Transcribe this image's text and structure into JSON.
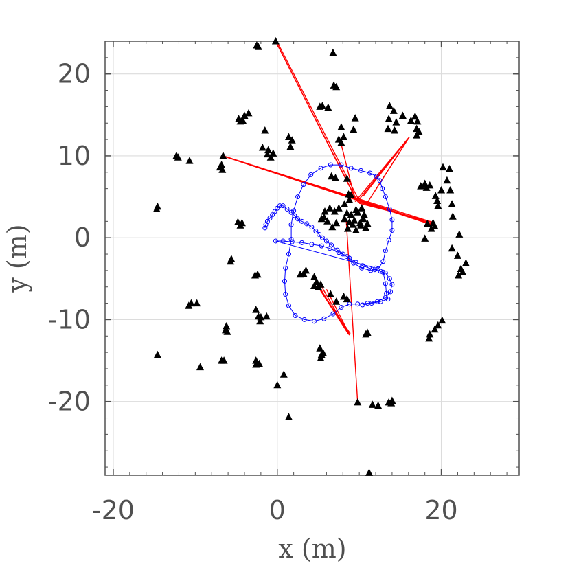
{
  "chart_data": {
    "type": "scatter",
    "xlabel": "x (m)",
    "ylabel": "y (m)",
    "xlim": [
      -21,
      29.5
    ],
    "ylim": [
      -29,
      24
    ],
    "grid": true,
    "x_ticks": [
      -20,
      0,
      20
    ],
    "x_tick_labels": [
      "-20",
      "0",
      "20"
    ],
    "y_ticks": [
      20,
      10,
      0,
      -10,
      -20
    ],
    "y_tick_labels": [
      "20",
      "10",
      "0",
      "-10",
      "-20"
    ],
    "colors": {
      "landmarks": "#000000",
      "trajectory": "#0000ff",
      "observations": "#ff0000",
      "grid": "#dcdcdc",
      "axes": "#505050"
    },
    "series": [
      {
        "marker": "triangle",
        "points": [
          [
            -2.5,
            23.5
          ],
          [
            -2.3,
            23.3
          ],
          [
            -0.2,
            24
          ],
          [
            6.8,
            22.6
          ],
          [
            6.9,
            18.6
          ],
          [
            7.2,
            18.4
          ],
          [
            5.2,
            16
          ],
          [
            6.2,
            15.9
          ],
          [
            5.5,
            16.1
          ],
          [
            9.5,
            14.6
          ],
          [
            9.3,
            13.2
          ],
          [
            7.5,
            12
          ],
          [
            7.8,
            11.6
          ],
          [
            8.1,
            12.3
          ],
          [
            7.8,
            13.5
          ],
          [
            -4.7,
            14.5
          ],
          [
            -4.2,
            14.3
          ],
          [
            -4,
            14.9
          ],
          [
            -3.5,
            15.2
          ],
          [
            -4.5,
            14.2
          ],
          [
            -1.5,
            13.1
          ],
          [
            1.4,
            12.3
          ],
          [
            1.8,
            11.9
          ],
          [
            1.6,
            11.1
          ],
          [
            -1.8,
            11
          ],
          [
            -1.1,
            10.7
          ],
          [
            -1.2,
            10.2
          ],
          [
            -0.5,
            10.3
          ],
          [
            -0.8,
            9.8
          ],
          [
            -12.3,
            10
          ],
          [
            -12.1,
            9.8
          ],
          [
            -10.7,
            9.4
          ],
          [
            -6.6,
            10
          ],
          [
            -6.8,
            8.9
          ],
          [
            -7,
            8.6
          ],
          [
            -6.7,
            8.3
          ],
          [
            -14.6,
            3.8
          ],
          [
            -14.7,
            3.5
          ],
          [
            -4.8,
            1.9
          ],
          [
            -4.5,
            1.5
          ],
          [
            -4.3,
            1.8
          ],
          [
            13.7,
            16.1
          ],
          [
            14.2,
            15.5
          ],
          [
            15.3,
            14.9
          ],
          [
            16.3,
            14.3
          ],
          [
            16.8,
            14.8
          ],
          [
            17.1,
            14.2
          ],
          [
            14.5,
            14.1
          ],
          [
            13.6,
            14.5
          ],
          [
            13.5,
            13.3
          ],
          [
            14.3,
            13.1
          ],
          [
            17,
            12.5
          ],
          [
            17.3,
            12.9
          ],
          [
            17,
            13.3
          ],
          [
            20.2,
            8.6
          ],
          [
            21,
            8.4
          ],
          [
            20.7,
            7
          ],
          [
            18,
            6.6
          ],
          [
            18.2,
            6.1
          ],
          [
            18.6,
            6.4
          ],
          [
            17.5,
            6.3
          ],
          [
            20,
            5.8
          ],
          [
            19.3,
            5.1
          ],
          [
            19.5,
            4.5
          ],
          [
            19.6,
            3.9
          ],
          [
            21.3,
            4.1
          ],
          [
            21.1,
            5.8
          ],
          [
            19.2,
            1.4
          ],
          [
            19,
            1.8
          ],
          [
            18.8,
            1.1
          ],
          [
            18.3,
            1.7
          ],
          [
            18,
            -0.1
          ],
          [
            22.2,
            0.4
          ],
          [
            21.4,
            2.6
          ],
          [
            21.3,
            -1.3
          ],
          [
            22,
            -2.2
          ],
          [
            23,
            -3.1
          ],
          [
            22.4,
            -3.8
          ],
          [
            22.1,
            -4.6
          ],
          [
            22.6,
            -4.2
          ],
          [
            20.1,
            -10.1
          ],
          [
            19.6,
            -10.7
          ],
          [
            19.2,
            -11.2
          ],
          [
            18.6,
            -11.8
          ],
          [
            18.5,
            -12.3
          ],
          [
            6.6,
            7.5
          ],
          [
            7.1,
            7.3
          ],
          [
            8.5,
            7.2
          ],
          [
            8.7,
            5.3
          ],
          [
            9,
            5.2
          ],
          [
            8.2,
            4.1
          ],
          [
            8.8,
            4.6
          ],
          [
            6.4,
            3.6
          ],
          [
            7,
            3.2
          ],
          [
            7.5,
            3.6
          ],
          [
            5.8,
            3.2
          ],
          [
            5.7,
            2.5
          ],
          [
            5.4,
            2.3
          ],
          [
            6.1,
            2
          ],
          [
            8.2,
            2.3
          ],
          [
            8.5,
            3
          ],
          [
            9,
            2.8
          ],
          [
            9.6,
            3.4
          ],
          [
            9.8,
            3.1
          ],
          [
            10.3,
            3.6
          ],
          [
            10.6,
            2.8
          ],
          [
            10.5,
            2.3
          ],
          [
            9.4,
            2.1
          ],
          [
            9.2,
            1.6
          ],
          [
            10.2,
            1.5
          ],
          [
            11,
            1.7
          ],
          [
            10.8,
            1.2
          ],
          [
            8.8,
            1.9
          ],
          [
            7.2,
            1.8
          ],
          [
            6.7,
            1.3
          ],
          [
            9.6,
            0.9
          ],
          [
            10.1,
            1.8
          ],
          [
            8.6,
            1.1
          ],
          [
            -5.7,
            -2.9
          ],
          [
            -5.6,
            -2.6
          ],
          [
            -2.7,
            -4.6
          ],
          [
            -2.4,
            -4.5
          ],
          [
            -10.5,
            -8
          ],
          [
            -10.8,
            -8.3
          ],
          [
            -9.8,
            -8
          ],
          [
            -2.3,
            -9.6
          ],
          [
            -2,
            -9.7
          ],
          [
            -2.1,
            -10.2
          ],
          [
            -1.3,
            -9.6
          ],
          [
            -2.6,
            -8.8
          ],
          [
            -6.2,
            -10.8
          ],
          [
            -6.3,
            -11.3
          ],
          [
            -6.1,
            -11.5
          ],
          [
            -14.6,
            -14.3
          ],
          [
            -6.8,
            -15
          ],
          [
            -6.5,
            -15
          ],
          [
            -9.4,
            -15.8
          ],
          [
            -2.6,
            -15
          ],
          [
            -2.2,
            -15.4
          ],
          [
            -2.6,
            -15.5
          ],
          [
            0.8,
            -16.7
          ],
          [
            0,
            -18
          ],
          [
            1.4,
            -21.9
          ],
          [
            2.8,
            -4.5
          ],
          [
            3.2,
            -4.4
          ],
          [
            3.5,
            -4
          ],
          [
            4.5,
            -4.8
          ],
          [
            4.8,
            -5.4
          ],
          [
            5.3,
            -5.7
          ],
          [
            4.5,
            -5.9
          ],
          [
            5,
            -6
          ],
          [
            6.5,
            -6.9
          ],
          [
            7.2,
            -7.8
          ],
          [
            8.1,
            -7.2
          ],
          [
            8.5,
            -7.5
          ],
          [
            10.8,
            -11.8
          ],
          [
            11,
            -11.6
          ],
          [
            5.2,
            -13.5
          ],
          [
            5.4,
            -14.3
          ],
          [
            5.3,
            -14.7
          ],
          [
            5.6,
            -14.1
          ],
          [
            9.8,
            -20.1
          ],
          [
            11.6,
            -20.4
          ],
          [
            12.3,
            -20.5
          ],
          [
            13.6,
            -20.1
          ],
          [
            14,
            -19.9
          ],
          [
            13.9,
            -20.2
          ],
          [
            11.2,
            -28.7
          ]
        ]
      },
      {
        "marker": "circle",
        "points": [
          [
            -1.5,
            1.2
          ],
          [
            -1.4,
            1.6
          ],
          [
            -1.2,
            2
          ],
          [
            -0.9,
            2.4
          ],
          [
            -0.6,
            2.8
          ],
          [
            -0.3,
            3.2
          ],
          [
            0,
            3.6
          ],
          [
            0.3,
            3.9
          ],
          [
            0.7,
            3.9
          ],
          [
            1.2,
            3.5
          ],
          [
            1.7,
            3.1
          ],
          [
            2.1,
            2.7
          ],
          [
            2.5,
            2.3
          ],
          [
            3,
            2
          ],
          [
            3.6,
            1.7
          ],
          [
            4.2,
            1.3
          ],
          [
            4.7,
            0.8
          ],
          [
            5.1,
            0.4
          ],
          [
            5.5,
            0
          ],
          [
            6,
            -0.4
          ],
          [
            6.6,
            -0.9
          ],
          [
            7.3,
            -1.5
          ],
          [
            8,
            -2
          ],
          [
            8.8,
            -2.5
          ],
          [
            9.6,
            -3
          ],
          [
            10.4,
            -3.4
          ],
          [
            11.2,
            -3.7
          ],
          [
            11.9,
            -3.9
          ],
          [
            12.6,
            -4.1
          ],
          [
            13.2,
            -4.3
          ],
          [
            13.7,
            -5
          ],
          [
            14,
            -5.7
          ],
          [
            13.8,
            -6.6
          ],
          [
            13.2,
            -7.3
          ],
          [
            12.2,
            -7.8
          ],
          [
            11,
            -8
          ],
          [
            9.8,
            -8.1
          ],
          [
            8.8,
            -8.1
          ],
          [
            7.8,
            -8.5
          ],
          [
            6.8,
            -9.3
          ],
          [
            5.7,
            -9.9
          ],
          [
            4.5,
            -10.2
          ],
          [
            3.3,
            -10
          ],
          [
            2.2,
            -9.5
          ],
          [
            1.4,
            -8.3
          ],
          [
            1,
            -6.9
          ],
          [
            0.9,
            -5.3
          ],
          [
            1,
            -3.7
          ],
          [
            1.4,
            -2
          ],
          [
            1.7,
            -0.2
          ],
          [
            1.7,
            1.6
          ],
          [
            2,
            3.3
          ],
          [
            2.5,
            5
          ],
          [
            3.2,
            6.5
          ],
          [
            4.1,
            7.7
          ],
          [
            5.3,
            8.5
          ],
          [
            6.5,
            8.9
          ],
          [
            7.8,
            8.9
          ],
          [
            9,
            8.5
          ],
          [
            10.2,
            8.2
          ],
          [
            11.3,
            7.9
          ],
          [
            12.1,
            7.5
          ],
          [
            12.5,
            7
          ],
          [
            12.8,
            6
          ],
          [
            13.2,
            5
          ],
          [
            13.7,
            3.5
          ],
          [
            14,
            2.2
          ],
          [
            14,
            0.9
          ],
          [
            13.6,
            -0.3
          ],
          [
            13.2,
            -1.6
          ],
          [
            12.9,
            -2.9
          ],
          [
            12.3,
            -3.8
          ],
          [
            11.4,
            -4
          ],
          [
            10.3,
            -3.7
          ],
          [
            9.3,
            -3.1
          ],
          [
            8.5,
            -2.3
          ],
          [
            7.5,
            -1.8
          ],
          [
            6.4,
            -1.3
          ],
          [
            5.4,
            -1
          ],
          [
            4.2,
            -0.8
          ],
          [
            3,
            -0.6
          ],
          [
            1.8,
            -0.5
          ],
          [
            0.7,
            -0.4
          ],
          [
            -0.2,
            -0.4
          ],
          [
            12,
            -3.7
          ],
          [
            12.9,
            -4.2
          ],
          [
            13.2,
            -5.6
          ],
          [
            13.3,
            -6.8
          ],
          [
            13.5,
            -7.5
          ],
          [
            12.6,
            -7.8
          ],
          [
            11.5,
            -8
          ],
          [
            10.4,
            -8.2
          ]
        ]
      },
      {
        "marker": "line",
        "segments": [
          [
            [
              -0.2,
              24
            ],
            [
              9.5,
              4.9
            ]
          ],
          [
            [
              -0.1,
              23.8
            ],
            [
              9.8,
              4.4
            ]
          ],
          [
            [
              0,
              23.9
            ],
            [
              9.9,
              4.7
            ]
          ],
          [
            [
              -6.6,
              10
            ],
            [
              18.9,
              1.6
            ]
          ],
          [
            [
              -6.6,
              10
            ],
            [
              18.9,
              1.9
            ]
          ],
          [
            [
              -6.4,
              9.9
            ],
            [
              19.1,
              1.5
            ]
          ],
          [
            [
              -6.6,
              10
            ],
            [
              19,
              1.7
            ]
          ],
          [
            [
              9.6,
              4.6
            ],
            [
              19.1,
              1.6
            ]
          ],
          [
            [
              9.8,
              4.4
            ],
            [
              19.1,
              1.7
            ]
          ],
          [
            [
              10,
              4.2
            ],
            [
              19,
              1.9
            ]
          ],
          [
            [
              16.1,
              12.3
            ],
            [
              10,
              4.7
            ]
          ],
          [
            [
              16.1,
              12.3
            ],
            [
              11,
              4.3
            ]
          ],
          [
            [
              16.1,
              12.3
            ],
            [
              11.9,
              5.7
            ]
          ],
          [
            [
              16.1,
              12.3
            ],
            [
              9.5,
              4.4
            ]
          ],
          [
            [
              16.1,
              12.3
            ],
            [
              10.5,
              5.1
            ]
          ],
          [
            [
              5,
              -5.8
            ],
            [
              8.7,
              -11.8
            ]
          ],
          [
            [
              5.2,
              -5.6
            ],
            [
              8.8,
              -11.9
            ]
          ],
          [
            [
              5.3,
              -6.5
            ],
            [
              8.9,
              -11.7
            ]
          ],
          [
            [
              4.6,
              -5.4
            ],
            [
              8.7,
              -11.8
            ]
          ],
          [
            [
              6,
              -6.3
            ],
            [
              8.8,
              -11.8
            ]
          ],
          [
            [
              8.4,
              2.3
            ],
            [
              9.8,
              -20.1
            ]
          ],
          [
            [
              7.6,
              12.2
            ],
            [
              9.5,
              4.6
            ]
          ],
          [
            [
              9.3,
              5.4
            ],
            [
              8.8,
              5.1
            ]
          ]
        ]
      }
    ]
  }
}
